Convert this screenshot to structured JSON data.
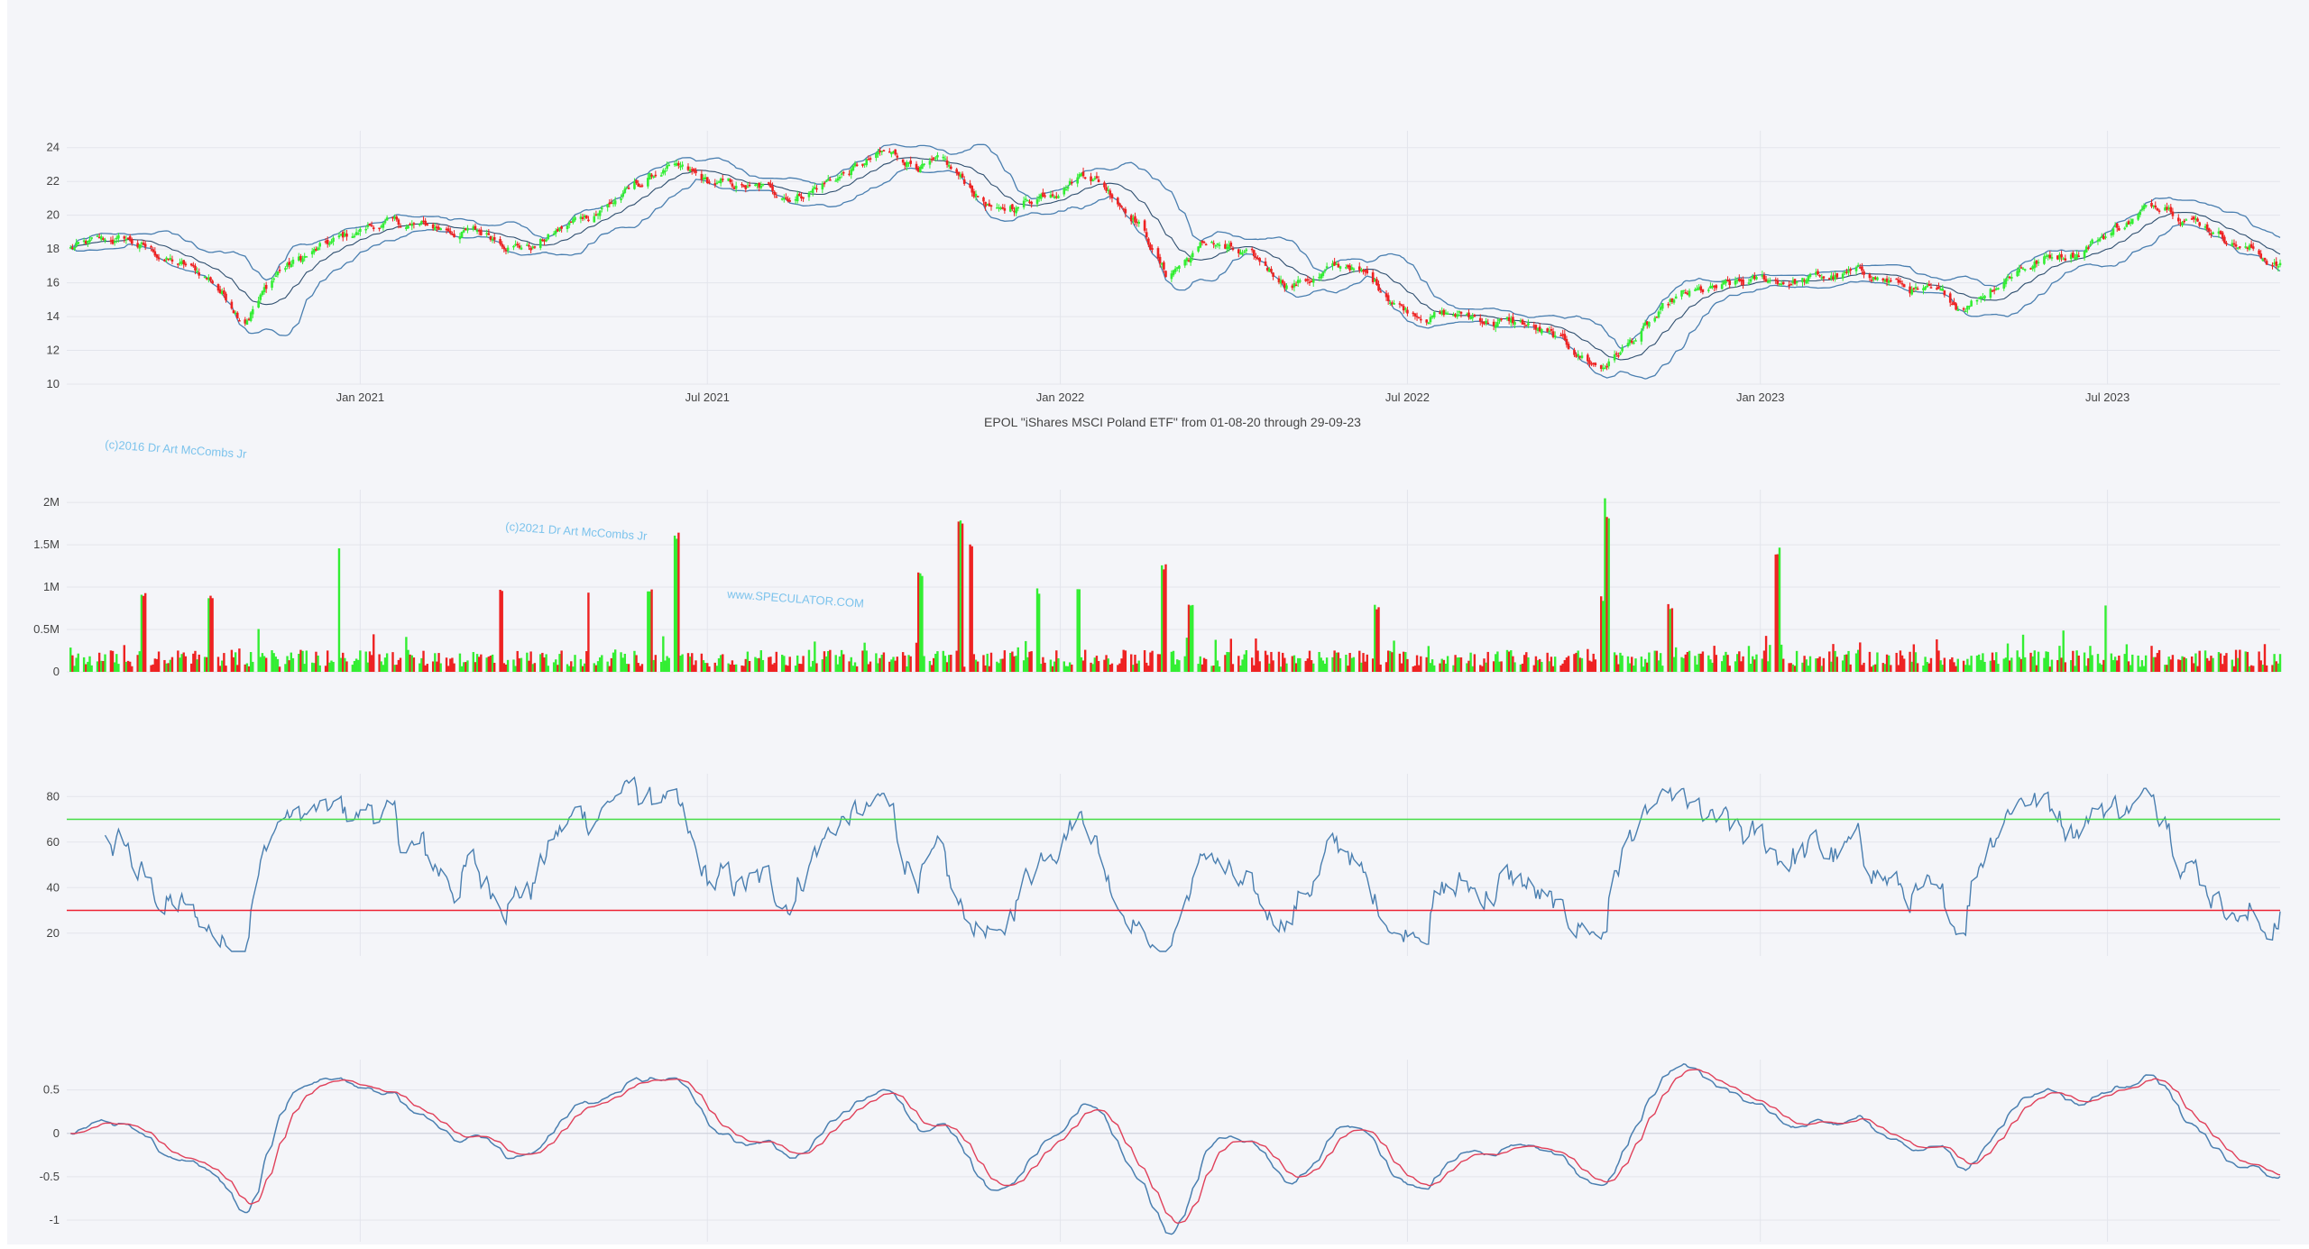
{
  "title": "EPOL \"iShares MSCI Poland ETF\" from 01-08-20 through 29-09-23",
  "watermarks": [
    "(c)2016 Dr Art McCombs Jr",
    "(c)2021 Dr Art McCombs Jr",
    "www.SPECULATOR.COM"
  ],
  "colors": {
    "up": "#33ee33",
    "down": "#ee2222",
    "band": "#4a7fb0",
    "rsi": "#4a7fb0",
    "overbought": "#44dd44",
    "oversold": "#ee2233",
    "macd": "#4a7fb0",
    "signal": "#e0405a"
  },
  "chart_data": [
    {
      "type": "candlestick",
      "x_tick_labels": [
        "Jan 2021",
        "Jul 2021",
        "Jan 2022",
        "Jul 2022",
        "Jan 2023",
        "Jul 2023"
      ],
      "x_range": [
        "2020-08-01",
        "2023-09-29"
      ],
      "ylim": [
        10,
        25
      ],
      "y_ticks": [
        10,
        12,
        14,
        16,
        18,
        20,
        22,
        24
      ],
      "grid": true,
      "close_anchors": [
        [
          "2020-08-01",
          18.0
        ],
        [
          "2020-09-01",
          18.5
        ],
        [
          "2020-10-15",
          16.2
        ],
        [
          "2020-11-01",
          14.0
        ],
        [
          "2020-11-20",
          16.8
        ],
        [
          "2021-01-10",
          19.5
        ],
        [
          "2021-03-01",
          19.0
        ],
        [
          "2021-04-01",
          18.2
        ],
        [
          "2021-05-15",
          21.0
        ],
        [
          "2021-06-10",
          22.8
        ],
        [
          "2021-07-01",
          21.8
        ],
        [
          "2021-08-15",
          21.2
        ],
        [
          "2021-10-01",
          23.5
        ],
        [
          "2021-11-01",
          22.8
        ],
        [
          "2021-12-01",
          20.0
        ],
        [
          "2022-01-15",
          22.8
        ],
        [
          "2022-02-10",
          20.0
        ],
        [
          "2022-02-25",
          16.5
        ],
        [
          "2022-03-20",
          18.5
        ],
        [
          "2022-05-01",
          16.0
        ],
        [
          "2022-06-01",
          17.0
        ],
        [
          "2022-07-01",
          14.5
        ],
        [
          "2022-09-01",
          13.5
        ],
        [
          "2022-10-10",
          11.0
        ],
        [
          "2022-11-20",
          15.0
        ],
        [
          "2023-01-01",
          16.0
        ],
        [
          "2023-03-01",
          16.5
        ],
        [
          "2023-04-15",
          14.5
        ],
        [
          "2023-05-15",
          17.0
        ],
        [
          "2023-06-15",
          18.0
        ],
        [
          "2023-07-31",
          20.9
        ],
        [
          "2023-09-29",
          17.0
        ]
      ],
      "bollinger": {
        "window": 20,
        "std": 2
      }
    },
    {
      "type": "bar",
      "name": "volume",
      "y_tick_labels": [
        "0",
        "0.5M",
        "1M",
        "1.5M",
        "2M"
      ],
      "ylim": [
        0,
        2150000
      ],
      "spikes": [
        [
          "2020-09-10",
          950000
        ],
        [
          "2020-10-15",
          900000
        ],
        [
          "2020-12-20",
          1500000
        ],
        [
          "2021-03-15",
          1000000
        ],
        [
          "2021-05-01",
          1000000
        ],
        [
          "2021-06-01",
          1000000
        ],
        [
          "2021-06-15",
          1700000
        ],
        [
          "2021-10-20",
          1200000
        ],
        [
          "2021-11-10",
          1850000
        ],
        [
          "2021-11-15",
          1600000
        ],
        [
          "2021-12-20",
          1000000
        ],
        [
          "2022-01-10",
          1000000
        ],
        [
          "2022-02-24",
          1300000
        ],
        [
          "2022-03-10",
          800000
        ],
        [
          "2022-06-15",
          800000
        ],
        [
          "2022-10-10",
          900000
        ],
        [
          "2022-10-13",
          2130000
        ],
        [
          "2022-10-14",
          1900000
        ],
        [
          "2022-11-15",
          800000
        ],
        [
          "2023-01-10",
          1500000
        ],
        [
          "2023-07-01",
          800000
        ]
      ]
    },
    {
      "type": "line",
      "name": "RSI",
      "ylim": [
        10,
        90
      ],
      "y_ticks": [
        20,
        40,
        60,
        80
      ],
      "overbought": 70,
      "oversold": 30
    },
    {
      "type": "line",
      "name": "MACD",
      "ylim": [
        -1.25,
        0.85
      ],
      "y_tick_labels": [
        "-1",
        "-0.5",
        "0",
        "0.5"
      ]
    }
  ]
}
